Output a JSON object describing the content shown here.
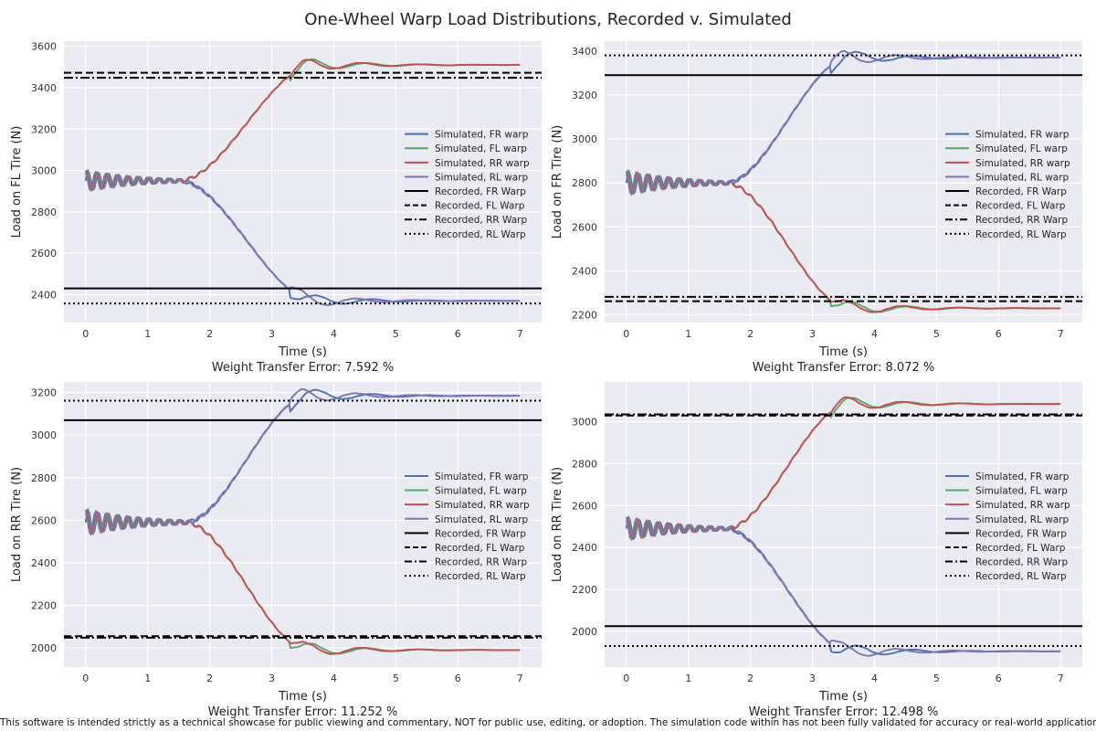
{
  "title": "One-Wheel Warp Load Distributions, Recorded v. Simulated",
  "disclaimer": "This software is intended strictly as a technical showcase for public viewing and commentary, NOT for public use, editing, or adoption. The simulation code within has not been fully validated for accuracy or real-world application. Do NOT apply",
  "colors": {
    "FR": "#4c72b0",
    "FL": "#55a868",
    "RR": "#c44e52",
    "RL": "#8172b2",
    "recorded": "#000000",
    "plot_bg": "#eaeaf2",
    "grid": "#ffffff"
  },
  "chart_data": [
    {
      "type": "line",
      "ylabel": "Load on FL Tire (N)",
      "xlabel": "Time (s)",
      "error_text": "Weight Transfer Error: 7.592 %",
      "xlim": [
        -0.35,
        7.35
      ],
      "ylim": [
        2265,
        3625
      ],
      "xticks": [
        0,
        1,
        2,
        3,
        4,
        5,
        6,
        7
      ],
      "yticks": [
        2400,
        2600,
        2800,
        3000,
        3200,
        3400,
        3600
      ],
      "grid": true,
      "legend_position": "center-right",
      "sim_start": 2950,
      "osc_amp": 50,
      "up_end": 3510,
      "down_end": 2370,
      "ramp_start": 1.5,
      "ramp_end": 3.7,
      "rising_series": [
        "Simulated, RR warp",
        "Simulated, FL warp"
      ],
      "falling_series": [
        "Simulated, FR warp",
        "Simulated, RL warp"
      ],
      "series": [
        {
          "name": "Simulated, FR warp",
          "key": "FR",
          "kind": "simulated"
        },
        {
          "name": "Simulated, FL warp",
          "key": "FL",
          "kind": "simulated"
        },
        {
          "name": "Simulated, RR warp",
          "key": "RR",
          "kind": "simulated"
        },
        {
          "name": "Simulated, RL warp",
          "key": "RL",
          "kind": "simulated"
        },
        {
          "name": "Recorded, FR Warp",
          "dash": "solid",
          "value": 2430
        },
        {
          "name": "Recorded, FL Warp",
          "dash": "dashed",
          "value": 3472
        },
        {
          "name": "Recorded, RR Warp",
          "dash": "dashdot",
          "value": 3448
        },
        {
          "name": "Recorded, RL Warp",
          "dash": "dotted",
          "value": 2357
        }
      ]
    },
    {
      "type": "line",
      "ylabel": "Load on FR Tire (N)",
      "xlabel": "Time (s)",
      "error_text": "Weight Transfer Error: 8.072 %",
      "xlim": [
        -0.35,
        7.35
      ],
      "ylim": [
        2165,
        3445
      ],
      "xticks": [
        0,
        1,
        2,
        3,
        4,
        5,
        6,
        7
      ],
      "yticks": [
        2200,
        2400,
        2600,
        2800,
        3000,
        3200,
        3400
      ],
      "grid": true,
      "legend_position": "center-right",
      "sim_start": 2800,
      "osc_amp": 55,
      "up_end": 3370,
      "down_end": 2230,
      "ramp_start": 1.6,
      "ramp_end": 3.6,
      "rising_series": [
        "Simulated, RL warp",
        "Simulated, FR warp"
      ],
      "falling_series": [
        "Simulated, RR warp",
        "Simulated, FL warp"
      ],
      "series": [
        {
          "name": "Simulated, FR warp",
          "key": "FR",
          "kind": "simulated"
        },
        {
          "name": "Simulated, FL warp",
          "key": "FL",
          "kind": "simulated"
        },
        {
          "name": "Simulated, RR warp",
          "key": "RR",
          "kind": "simulated"
        },
        {
          "name": "Simulated, RL warp",
          "key": "RL",
          "kind": "simulated"
        },
        {
          "name": "Recorded, FR Warp",
          "dash": "solid",
          "value": 3290
        },
        {
          "name": "Recorded, FL Warp",
          "dash": "dashed",
          "value": 2262
        },
        {
          "name": "Recorded, RR Warp",
          "dash": "dashdot",
          "value": 2282
        },
        {
          "name": "Recorded, RL Warp",
          "dash": "dotted",
          "value": 3380
        }
      ]
    },
    {
      "type": "line",
      "ylabel": "Load on RR Tire (N)",
      "xlabel": "Time (s)",
      "error_text": "Weight Transfer Error: 11.252 %",
      "xlim": [
        -0.35,
        7.35
      ],
      "ylim": [
        1910,
        3250
      ],
      "xticks": [
        0,
        1,
        2,
        3,
        4,
        5,
        6,
        7
      ],
      "yticks": [
        2000,
        2200,
        2400,
        2600,
        2800,
        3000,
        3200
      ],
      "grid": true,
      "legend_position": "center-right",
      "sim_start": 2590,
      "osc_amp": 60,
      "up_end": 3185,
      "down_end": 1990,
      "ramp_start": 1.6,
      "ramp_end": 3.6,
      "rising_series": [
        "Simulated, RL warp",
        "Simulated, FR warp"
      ],
      "falling_series": [
        "Simulated, RR warp",
        "Simulated, FL warp"
      ],
      "series": [
        {
          "name": "Simulated, FR warp",
          "key": "FR",
          "kind": "simulated"
        },
        {
          "name": "Simulated, FL warp",
          "key": "FL",
          "kind": "simulated"
        },
        {
          "name": "Simulated, RR warp",
          "key": "RR",
          "kind": "simulated"
        },
        {
          "name": "Simulated, RL warp",
          "key": "RL",
          "kind": "simulated"
        },
        {
          "name": "Recorded, FR Warp",
          "dash": "solid",
          "value": 3070
        },
        {
          "name": "Recorded, FL Warp",
          "dash": "dashed",
          "value": 2055
        },
        {
          "name": "Recorded, RR Warp",
          "dash": "dashdot",
          "value": 2048
        },
        {
          "name": "Recorded, RL Warp",
          "dash": "dotted",
          "value": 3162
        }
      ]
    },
    {
      "type": "line",
      "ylabel": "Load on RR Tire (N)",
      "xlabel": "Time (s)",
      "error_text": "Weight Transfer Error: 12.498 %",
      "xlim": [
        -0.35,
        7.35
      ],
      "ylim": [
        1830,
        3190
      ],
      "xticks": [
        0,
        1,
        2,
        3,
        4,
        5,
        6,
        7
      ],
      "yticks": [
        2000,
        2200,
        2400,
        2600,
        2800,
        3000
      ],
      "grid": true,
      "legend_position": "center-right",
      "sim_start": 2490,
      "osc_amp": 55,
      "up_end": 3085,
      "down_end": 1905,
      "ramp_start": 1.6,
      "ramp_end": 3.6,
      "rising_series": [
        "Simulated, RR warp",
        "Simulated, FL warp"
      ],
      "falling_series": [
        "Simulated, RL warp",
        "Simulated, FR warp"
      ],
      "series": [
        {
          "name": "Simulated, FR warp",
          "key": "FR",
          "kind": "simulated"
        },
        {
          "name": "Simulated, FL warp",
          "key": "FL",
          "kind": "simulated"
        },
        {
          "name": "Simulated, RR warp",
          "key": "RR",
          "kind": "simulated"
        },
        {
          "name": "Simulated, RL warp",
          "key": "RL",
          "kind": "simulated"
        },
        {
          "name": "Recorded, FR Warp",
          "dash": "solid",
          "value": 2025
        },
        {
          "name": "Recorded, FL Warp",
          "dash": "dashed",
          "value": 3030
        },
        {
          "name": "Recorded, RR Warp",
          "dash": "dashdot",
          "value": 3035
        },
        {
          "name": "Recorded, RL Warp",
          "dash": "dotted",
          "value": 1930
        }
      ]
    }
  ]
}
